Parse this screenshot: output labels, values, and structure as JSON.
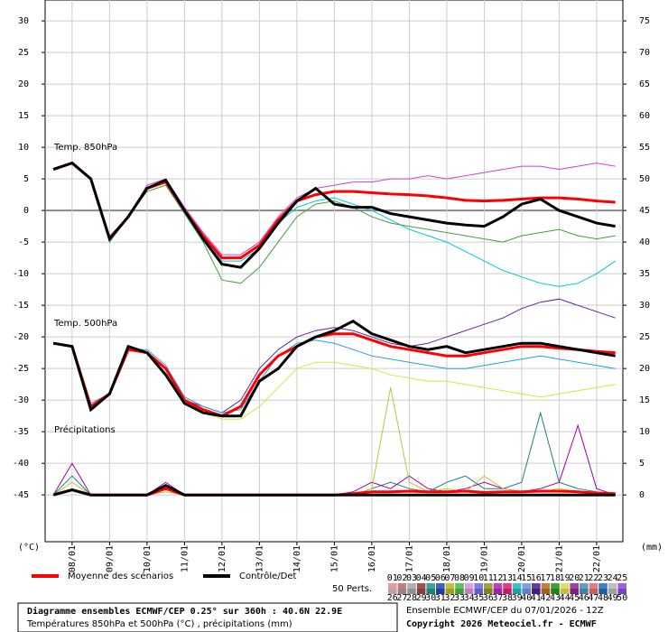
{
  "chart_data": {
    "type": "line",
    "x": [
      7.5,
      8,
      8.5,
      9,
      9.5,
      10,
      10.5,
      11,
      11.5,
      12,
      12.5,
      13,
      13.5,
      14,
      14.5,
      15,
      15.5,
      16,
      16.5,
      17,
      17.5,
      18,
      18.5,
      19,
      19.5,
      20,
      20.5,
      21,
      21.5,
      22,
      22.5
    ],
    "xlim": [
      7.28,
      22.7
    ],
    "xticks": [
      {
        "value": 8,
        "label": "08/01"
      },
      {
        "value": 9,
        "label": "09/01"
      },
      {
        "value": 10,
        "label": "10/01"
      },
      {
        "value": 11,
        "label": "11/01"
      },
      {
        "value": 12,
        "label": "12/01"
      },
      {
        "value": 13,
        "label": "13/01"
      },
      {
        "value": 14,
        "label": "14/01"
      },
      {
        "value": 15,
        "label": "15/01"
      },
      {
        "value": 16,
        "label": "16/01"
      },
      {
        "value": 17,
        "label": "17/01"
      },
      {
        "value": 18,
        "label": "18/01"
      },
      {
        "value": 19,
        "label": "19/01"
      },
      {
        "value": 20,
        "label": "20/01"
      },
      {
        "value": 21,
        "label": "21/01"
      },
      {
        "value": 22,
        "label": "22/01"
      }
    ],
    "ylim": [
      -52.4,
      33.3
    ],
    "yticks": [
      -45,
      -40,
      -35,
      -30,
      -25,
      -20,
      -15,
      -10,
      -5,
      0,
      5,
      10,
      15,
      20,
      25,
      30
    ],
    "y2lim": [
      -7.4,
      78.3
    ],
    "y2ticks": [
      0,
      5,
      10,
      15,
      20,
      25,
      30,
      35,
      40,
      45,
      50,
      55,
      60,
      65,
      70,
      75
    ],
    "ylabel": "(°C)",
    "y2label": "(mm)",
    "grid": true,
    "panels": [
      {
        "label": "Temp. 850hPa",
        "series": [
          {
            "color": "#00c8d8",
            "values": [
              6.5,
              7.5,
              5,
              -4.5,
              -1,
              3.5,
              4.5,
              0,
              -4,
              -8,
              -8,
              -6,
              -2,
              0.5,
              1.5,
              2,
              1,
              0,
              -1.5,
              -3,
              -4,
              -5,
              -6.5,
              -8,
              -9.5,
              -10.5,
              -11.5,
              -12,
              -11.5,
              -10,
              -8
            ]
          },
          {
            "color": "#d040d0",
            "values": [
              6.5,
              7.5,
              5,
              -4,
              -1,
              4,
              5,
              0.5,
              -3.5,
              -7,
              -7,
              -5,
              -1,
              2,
              3.5,
              4,
              4.5,
              4.5,
              5,
              5,
              5.5,
              5,
              5.5,
              6,
              6.5,
              7,
              7,
              6.5,
              7,
              7.5,
              7
            ]
          },
          {
            "color": "#40a040",
            "values": [
              6.5,
              7.5,
              5,
              -5,
              -1,
              3,
              4,
              -0.5,
              -5,
              -11,
              -11.5,
              -9,
              -5,
              -1,
              1,
              1.5,
              0.5,
              -1,
              -2,
              -2.5,
              -3,
              -3.5,
              -4,
              -4.5,
              -5,
              -4,
              -3.5,
              -3,
              -4,
              -4.5,
              -4
            ]
          },
          {
            "name": "Moyenne des scénarios",
            "color": "#ff0000",
            "role": "mean",
            "values": [
              6.5,
              7.5,
              5,
              -4.5,
              -1,
              3.5,
              4.5,
              0,
              -4,
              -7.5,
              -7.5,
              -5.5,
              -1.5,
              1.5,
              2.5,
              3,
              3,
              2.8,
              2.6,
              2.5,
              2.3,
              2,
              1.6,
              1.5,
              1.6,
              1.8,
              2,
              2,
              1.8,
              1.5,
              1.3
            ]
          },
          {
            "name": "Contrôle/Det",
            "color": "#000000",
            "role": "control",
            "values": [
              6.5,
              7.5,
              5,
              -4.5,
              -1,
              3.5,
              4.8,
              0,
              -4.5,
              -8.5,
              -9,
              -6,
              -2,
              1.5,
              3.5,
              1,
              0.5,
              0.5,
              -0.5,
              -1,
              -1.5,
              -2,
              -2.3,
              -2.5,
              -1,
              1,
              1.8,
              0,
              -1,
              -2,
              -2.5
            ]
          }
        ]
      },
      {
        "label": "Temp. 500hPa",
        "series": [
          {
            "color": "#6020a0",
            "values": [
              -21,
              -21.5,
              -31,
              -29,
              -22,
              -22.5,
              -25,
              -30,
              -31,
              -32,
              -30,
              -25,
              -22,
              -20,
              -19,
              -18.5,
              -19,
              -20,
              -21,
              -21.5,
              -21,
              -20,
              -19,
              -18,
              -17,
              -15.5,
              -14.5,
              -14,
              -15,
              -16,
              -17
            ]
          },
          {
            "color": "#e0e040",
            "values": [
              -21,
              -21.5,
              -31,
              -29,
              -22,
              -22.5,
              -25,
              -30,
              -32,
              -33,
              -33,
              -31,
              -28,
              -25,
              -24,
              -24,
              -24.5,
              -25,
              -26,
              -26.5,
              -27,
              -27,
              -27.5,
              -28,
              -28.5,
              -29,
              -29.5,
              -29,
              -28.5,
              -28,
              -27.5
            ]
          },
          {
            "color": "#20a0e0",
            "values": [
              -21,
              -21.5,
              -30.5,
              -29,
              -22,
              -22,
              -24.5,
              -29.5,
              -31,
              -32,
              -31.5,
              -27,
              -23,
              -21,
              -20.5,
              -21,
              -22,
              -23,
              -23.5,
              -24,
              -24.5,
              -25,
              -25,
              -24.5,
              -24,
              -23.5,
              -23,
              -23.5,
              -24,
              -24.5,
              -25
            ]
          },
          {
            "name": "Moyenne des scénarios",
            "color": "#ff0000",
            "role": "mean",
            "values": [
              -21,
              -21.5,
              -31,
              -29,
              -22,
              -22.5,
              -25,
              -30,
              -31.5,
              -32.5,
              -31,
              -26,
              -23,
              -21.5,
              -20,
              -19.5,
              -19.5,
              -20.5,
              -21.5,
              -22,
              -22.5,
              -23,
              -23,
              -22.5,
              -22,
              -21.5,
              -21.5,
              -21.8,
              -22,
              -22.3,
              -22.5
            ]
          },
          {
            "name": "Contrôle/Det",
            "color": "#000000",
            "role": "control",
            "values": [
              -21,
              -21.5,
              -31.5,
              -29,
              -21.5,
              -22.5,
              -26,
              -30.5,
              -32,
              -32.5,
              -32.5,
              -27,
              -25,
              -21.5,
              -20,
              -19,
              -17.5,
              -19.5,
              -20.5,
              -21.5,
              -22,
              -21.5,
              -22.5,
              -22,
              -21.5,
              -21,
              -21,
              -21.5,
              -22,
              -22.5,
              -23
            ]
          }
        ]
      },
      {
        "label": "Précipitations",
        "series": [
          {
            "color": "#208080",
            "axis": "y2",
            "values": [
              0,
              3,
              0,
              0,
              0,
              0,
              1,
              0,
              0,
              0,
              0,
              0,
              0,
              0,
              0,
              0,
              0,
              1,
              2,
              1,
              0.5,
              2,
              3,
              1,
              1,
              2,
              13,
              2,
              1,
              0.5,
              0
            ]
          },
          {
            "color": "#a000a0",
            "axis": "y2",
            "values": [
              0,
              5,
              0,
              0,
              0,
              0,
              2,
              0,
              0,
              0,
              0,
              0,
              0,
              0,
              0,
              0,
              0.5,
              2,
              1,
              3,
              1,
              0.5,
              1,
              2,
              1,
              0.5,
              1,
              2,
              11,
              1,
              0
            ]
          },
          {
            "color": "#c0c040",
            "axis": "y2",
            "values": [
              0,
              2,
              0,
              0,
              0,
              0,
              0.5,
              0,
              0,
              0,
              0,
              0,
              0,
              0,
              0,
              0,
              0,
              1,
              17,
              2,
              0.5,
              1,
              0.5,
              3,
              1,
              0.5,
              0.5,
              1,
              0.5,
              0.5,
              0
            ]
          },
          {
            "name": "Moyenne des scénarios",
            "color": "#ff0000",
            "axis": "y2",
            "role": "mean",
            "values": [
              0,
              0.8,
              0,
              0,
              0,
              0,
              1,
              0,
              0,
              0,
              0,
              0,
              0,
              0,
              0,
              0,
              0.2,
              0.5,
              0.5,
              0.6,
              0.5,
              0.5,
              0.6,
              0.4,
              0.5,
              0.5,
              0.6,
              0.6,
              0.5,
              0.3,
              0.2
            ]
          },
          {
            "name": "Contrôle/Det",
            "color": "#000000",
            "axis": "y2",
            "role": "control",
            "values": [
              0,
              0.8,
              0,
              0,
              0,
              0,
              1.5,
              0,
              0,
              0,
              0,
              0,
              0,
              0,
              0,
              0,
              0,
              0,
              0,
              0,
              0,
              0,
              0,
              0,
              0,
              0,
              0,
              0,
              0,
              0,
              0
            ]
          }
        ]
      }
    ],
    "perts_title": "50 Perts.",
    "perts_labels": [
      "01",
      "02",
      "03",
      "04",
      "05",
      "06",
      "07",
      "08",
      "09",
      "10",
      "11",
      "12",
      "13",
      "14",
      "15",
      "16",
      "17",
      "18",
      "19",
      "20",
      "21",
      "22",
      "23",
      "24",
      "25",
      "26",
      "27",
      "28",
      "29",
      "30",
      "31",
      "32",
      "33",
      "34",
      "35",
      "36",
      "37",
      "38",
      "39",
      "40",
      "41",
      "42",
      "43",
      "44",
      "45",
      "46",
      "47",
      "48",
      "49",
      "50"
    ],
    "perts_colors": [
      "#d8a0a0",
      "#c08080",
      "#b0b0b0",
      "#a05050",
      "#40a0a0",
      "#4060c0",
      "#c0c040",
      "#60c060",
      "#e0a0e0",
      "#8080e0",
      "#a0a040",
      "#c040c0",
      "#e04080",
      "#40c0c0",
      "#80a0e0",
      "#6040a0",
      "#c08040",
      "#40a040",
      "#e0e060",
      "#a040a0",
      "#60a0c0",
      "#e08080",
      "#4080c0",
      "#c0c0c0",
      "#a060e0",
      "#c0a0a0",
      "#a08080",
      "#909090",
      "#804040",
      "#208080",
      "#2040a0",
      "#a0a020",
      "#40a040",
      "#c080c0",
      "#6060c0",
      "#808020",
      "#a020a0",
      "#c02060",
      "#20a0a0",
      "#6080c0",
      "#402080",
      "#a06020",
      "#208020",
      "#c0c040",
      "#802080",
      "#4080a0",
      "#c06060",
      "#2060a0",
      "#a0a0a0",
      "#8040c0"
    ],
    "footer": {
      "title": "Diagramme ensembles ECMWF/CEP 0.25° sur 360h : 40.6N 22.9E",
      "subtitle": "Températures 850hPa et 500hPa (°C) , précipitations (mm)",
      "run": "Ensemble ECMWF/CEP du 07/01/2026 - 12Z",
      "copyright": "Copyright 2026 Meteociel.fr - ECMWF"
    }
  }
}
